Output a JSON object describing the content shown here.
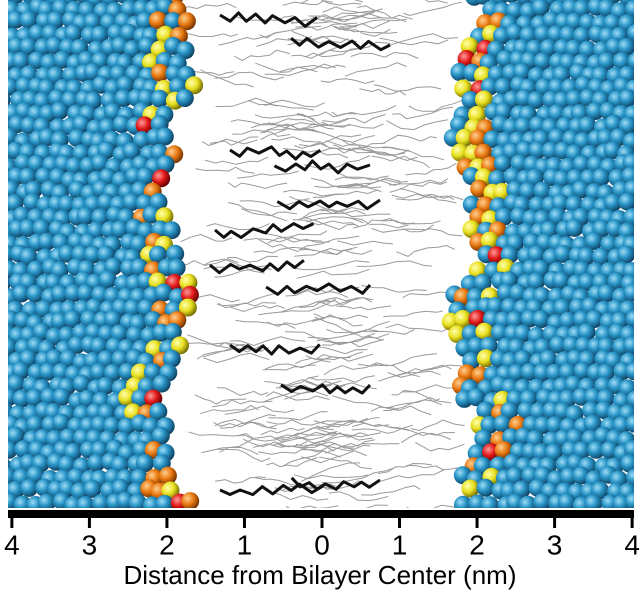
{
  "axis": {
    "label": "Distance from Bilayer Center (nm)",
    "xlim": [
      -4.05,
      4.05
    ],
    "ticks": [
      {
        "value": -4,
        "label": "4"
      },
      {
        "value": -3,
        "label": "3"
      },
      {
        "value": -2,
        "label": "2"
      },
      {
        "value": -1,
        "label": "1"
      },
      0,
      1,
      2,
      3,
      4
    ]
  }
}
